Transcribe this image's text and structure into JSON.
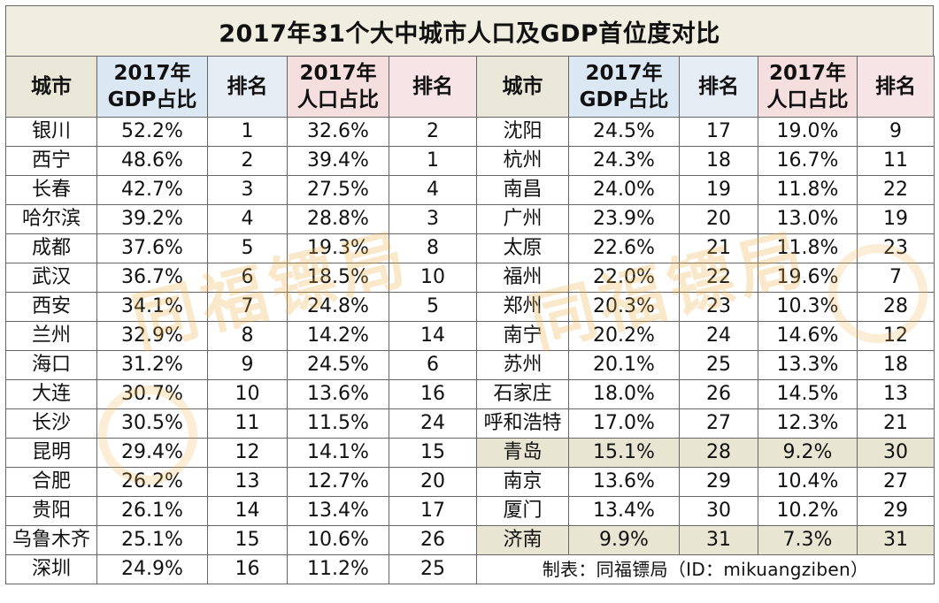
{
  "title": "2017年31个大中城市人口及GDP首位度对比",
  "colors": {
    "title_bg": "#efeee0",
    "city_header_bg": "#e9e7d8",
    "gdp_header_bg": "#dbe7f2",
    "rank_header_bg": "#e6ecf4",
    "pop_header_bg": "#f4dede",
    "highlight_row_bg": "#e8e6d3",
    "watermark": "#eeac46"
  },
  "headers": {
    "city": "城市",
    "gdp_line1": "2017年",
    "gdp_line2": "GDP占比",
    "rank": "排名",
    "pop_line1": "2017年",
    "pop_line2": "人口占比"
  },
  "left_rows": [
    {
      "city": "银川",
      "gdp": "52.2%",
      "gdp_rank": "1",
      "pop": "32.6%",
      "pop_rank": "2"
    },
    {
      "city": "西宁",
      "gdp": "48.6%",
      "gdp_rank": "2",
      "pop": "39.4%",
      "pop_rank": "1"
    },
    {
      "city": "长春",
      "gdp": "42.7%",
      "gdp_rank": "3",
      "pop": "27.5%",
      "pop_rank": "4"
    },
    {
      "city": "哈尔滨",
      "gdp": "39.2%",
      "gdp_rank": "4",
      "pop": "28.8%",
      "pop_rank": "3"
    },
    {
      "city": "成都",
      "gdp": "37.6%",
      "gdp_rank": "5",
      "pop": "19.3%",
      "pop_rank": "8"
    },
    {
      "city": "武汉",
      "gdp": "36.7%",
      "gdp_rank": "6",
      "pop": "18.5%",
      "pop_rank": "10"
    },
    {
      "city": "西安",
      "gdp": "34.1%",
      "gdp_rank": "7",
      "pop": "24.8%",
      "pop_rank": "5"
    },
    {
      "city": "兰州",
      "gdp": "32.9%",
      "gdp_rank": "8",
      "pop": "14.2%",
      "pop_rank": "14"
    },
    {
      "city": "海口",
      "gdp": "31.2%",
      "gdp_rank": "9",
      "pop": "24.5%",
      "pop_rank": "6"
    },
    {
      "city": "大连",
      "gdp": "30.7%",
      "gdp_rank": "10",
      "pop": "13.6%",
      "pop_rank": "16"
    },
    {
      "city": "长沙",
      "gdp": "30.5%",
      "gdp_rank": "11",
      "pop": "11.5%",
      "pop_rank": "24"
    },
    {
      "city": "昆明",
      "gdp": "29.4%",
      "gdp_rank": "12",
      "pop": "14.1%",
      "pop_rank": "15"
    },
    {
      "city": "合肥",
      "gdp": "26.2%",
      "gdp_rank": "13",
      "pop": "12.7%",
      "pop_rank": "20"
    },
    {
      "city": "贵阳",
      "gdp": "26.1%",
      "gdp_rank": "14",
      "pop": "13.4%",
      "pop_rank": "17"
    },
    {
      "city": "乌鲁木齐",
      "gdp": "25.1%",
      "gdp_rank": "15",
      "pop": "10.6%",
      "pop_rank": "26"
    },
    {
      "city": "深圳",
      "gdp": "24.9%",
      "gdp_rank": "16",
      "pop": "11.2%",
      "pop_rank": "25"
    }
  ],
  "right_rows": [
    {
      "city": "沈阳",
      "gdp": "24.5%",
      "gdp_rank": "17",
      "pop": "19.0%",
      "pop_rank": "9",
      "highlight": false
    },
    {
      "city": "杭州",
      "gdp": "24.3%",
      "gdp_rank": "18",
      "pop": "16.7%",
      "pop_rank": "11",
      "highlight": false
    },
    {
      "city": "南昌",
      "gdp": "24.0%",
      "gdp_rank": "19",
      "pop": "11.8%",
      "pop_rank": "22",
      "highlight": false
    },
    {
      "city": "广州",
      "gdp": "23.9%",
      "gdp_rank": "20",
      "pop": "13.0%",
      "pop_rank": "19",
      "highlight": false
    },
    {
      "city": "太原",
      "gdp": "22.6%",
      "gdp_rank": "21",
      "pop": "11.8%",
      "pop_rank": "23",
      "highlight": false
    },
    {
      "city": "福州",
      "gdp": "22.0%",
      "gdp_rank": "22",
      "pop": "19.6%",
      "pop_rank": "7",
      "highlight": false
    },
    {
      "city": "郑州",
      "gdp": "20.3%",
      "gdp_rank": "23",
      "pop": "10.3%",
      "pop_rank": "28",
      "highlight": false
    },
    {
      "city": "南宁",
      "gdp": "20.2%",
      "gdp_rank": "24",
      "pop": "14.6%",
      "pop_rank": "12",
      "highlight": false
    },
    {
      "city": "苏州",
      "gdp": "20.1%",
      "gdp_rank": "25",
      "pop": "13.3%",
      "pop_rank": "18",
      "highlight": false
    },
    {
      "city": "石家庄",
      "gdp": "18.0%",
      "gdp_rank": "26",
      "pop": "14.5%",
      "pop_rank": "13",
      "highlight": false
    },
    {
      "city": "呼和浩特",
      "gdp": "17.0%",
      "gdp_rank": "27",
      "pop": "12.3%",
      "pop_rank": "21",
      "highlight": false
    },
    {
      "city": "青岛",
      "gdp": "15.1%",
      "gdp_rank": "28",
      "pop": "9.2%",
      "pop_rank": "30",
      "highlight": true
    },
    {
      "city": "南京",
      "gdp": "13.6%",
      "gdp_rank": "29",
      "pop": "10.4%",
      "pop_rank": "27",
      "highlight": false
    },
    {
      "city": "厦门",
      "gdp": "13.4%",
      "gdp_rank": "30",
      "pop": "10.2%",
      "pop_rank": "29",
      "highlight": false
    },
    {
      "city": "济南",
      "gdp": "9.9%",
      "gdp_rank": "31",
      "pop": "7.3%",
      "pop_rank": "31",
      "highlight": true
    }
  ],
  "footer": "制表：同福镖局（ID：mikuangziben）",
  "watermark_text": "同福镖局"
}
